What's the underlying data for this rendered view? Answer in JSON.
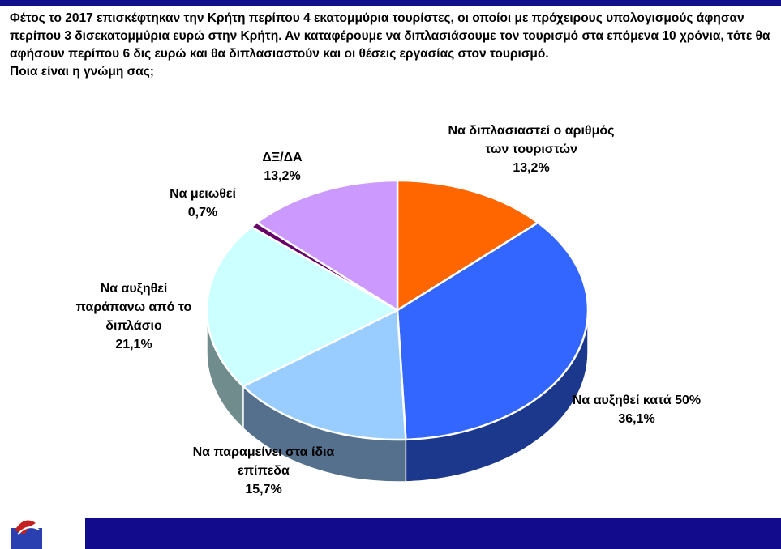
{
  "intro": "Φέτος το 2017 επισκέφτηκαν την Κρήτη περίπου 4 εκατομμύρια τουρίστες, οι οποίοι με πρόχειρους υπολογισμούς άφησαν περίπου 3 δισεκατομμύρια ευρώ στην Κρήτη. Αν καταφέρουμε να διπλασιάσουμε τον τουρισμό στα επόμενα 10 χρόνια, τότε θα αφήσουν περίπου 6 δις ευρώ και θα διπλασιαστούν και οι θέσεις εργασίας στον τουρισμό.",
  "question": "Ποια είναι η γνώμη σας;",
  "chart_data": {
    "type": "pie",
    "categories": [
      "Να διπλασιαστεί ο αριθμός των τουριστών",
      "Να αυξηθεί κατά 50%",
      "Να παραμείνει στα ίδια επίπεδα",
      "Να αυξηθεί παράπανω από το διπλάσιο",
      "Να μειωθεί",
      "ΔΞ/ΔΑ"
    ],
    "values": [
      13.2,
      36.1,
      15.7,
      21.1,
      0.7,
      13.2
    ],
    "value_labels": [
      "13,2%",
      "36,1%",
      "15,7%",
      "21,1%",
      "0,7%",
      "13,2%"
    ],
    "colors": [
      "#ff6600",
      "#3366ff",
      "#99ccff",
      "#ccffff",
      "#660066",
      "#cc99ff"
    ]
  }
}
